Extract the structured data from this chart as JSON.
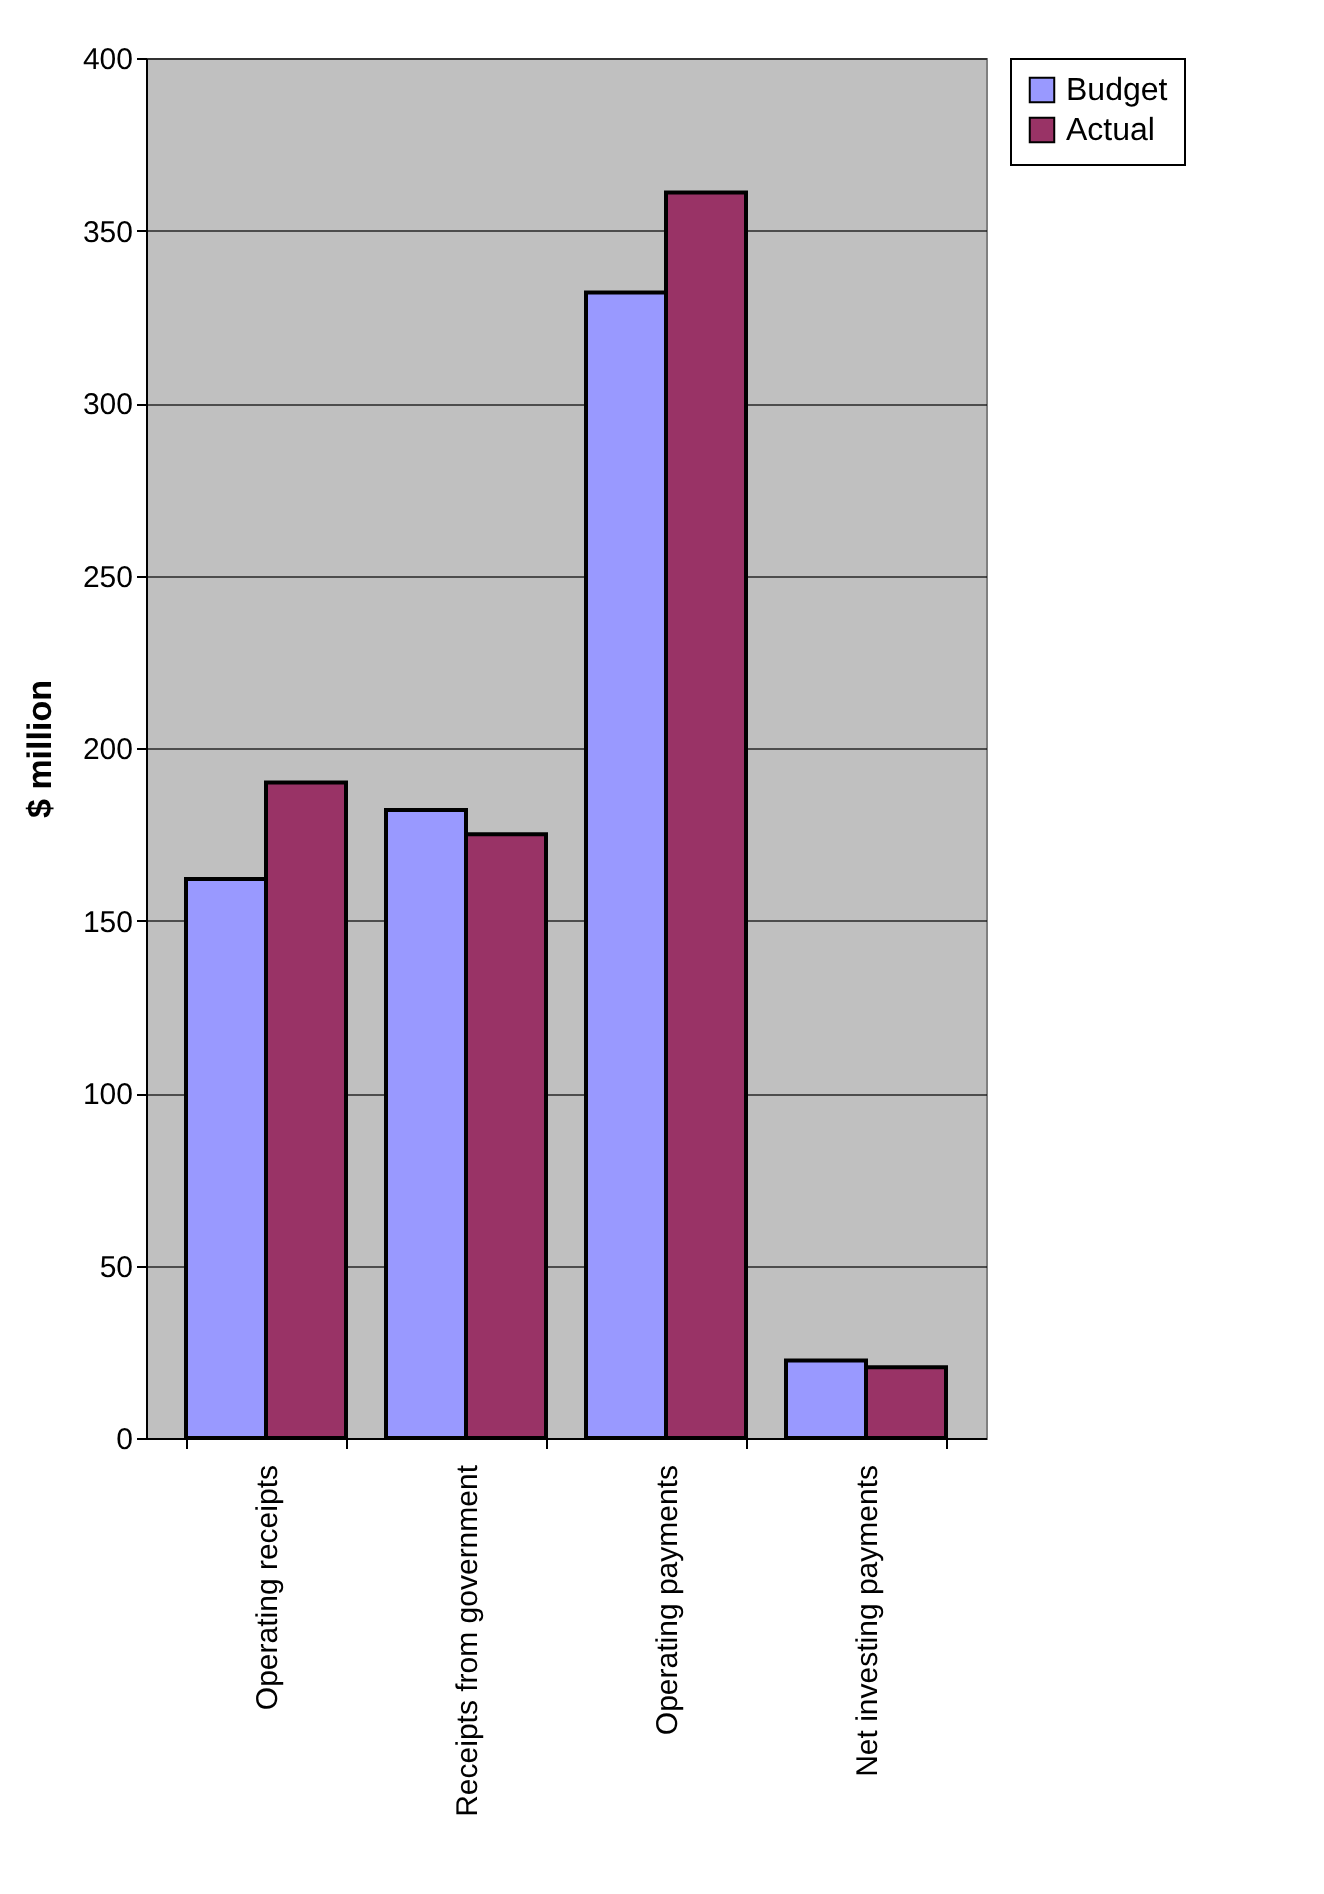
{
  "chart_data": {
    "type": "bar",
    "ylabel": "$ million",
    "categories": [
      "Operating receipts",
      "Receipts from government",
      "Operating payments",
      "Net investing payments"
    ],
    "series": [
      {
        "name": "Budget",
        "color": "#9999ff",
        "values": [
          162,
          182,
          332,
          22.5
        ]
      },
      {
        "name": "Actual",
        "color": "#993366",
        "values": [
          190,
          175,
          361,
          20.5
        ]
      }
    ],
    "ylim": [
      0,
      400
    ],
    "yticks": [
      0,
      50,
      100,
      150,
      200,
      250,
      300,
      350,
      400
    ],
    "grid": "y",
    "legend": "right"
  }
}
